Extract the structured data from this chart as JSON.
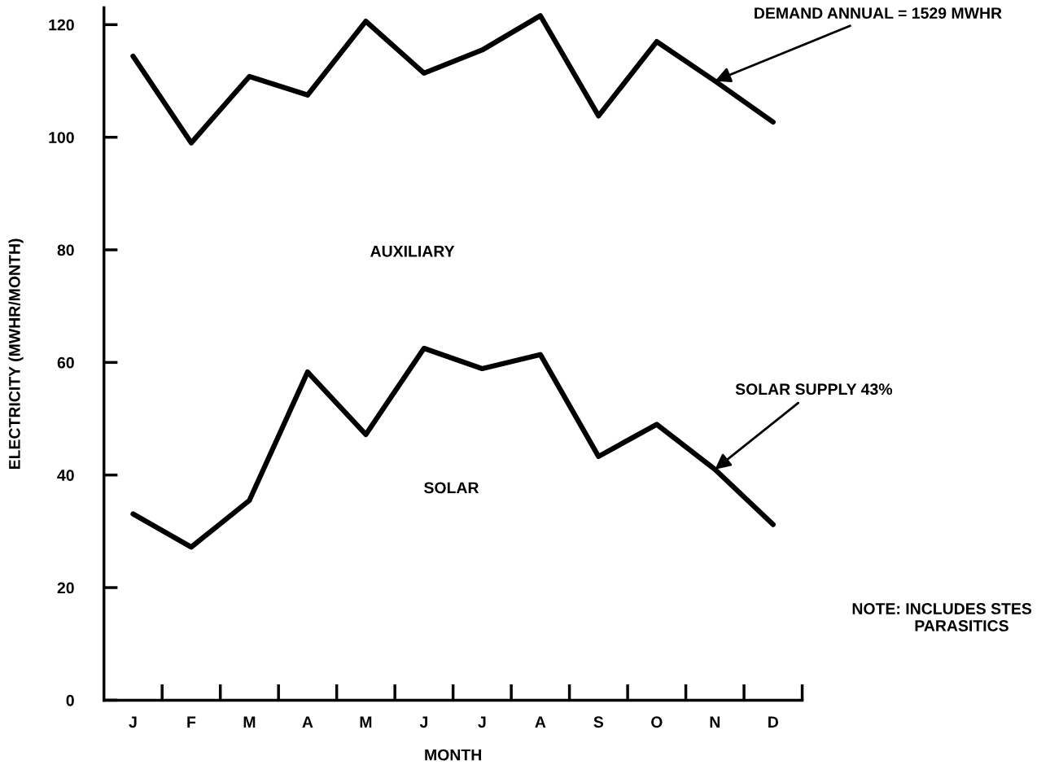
{
  "chart_data": {
    "type": "line",
    "xlabel": "MONTH",
    "ylabel": "ELECTRICITY (MWHR/MONTH)",
    "categories": [
      "J",
      "F",
      "M",
      "A",
      "M",
      "J",
      "J",
      "A",
      "S",
      "O",
      "N",
      "D"
    ],
    "series": [
      {
        "color": "#000000",
        "values": [
          114.4,
          99,
          110.8,
          107.5,
          120.6,
          111.4,
          115.5,
          121.6,
          103.8,
          117,
          110,
          102.7
        ]
      },
      {
        "color": "#000000",
        "values": [
          33.1,
          27.2,
          35.5,
          58.3,
          47.2,
          62.5,
          58.9,
          61.4,
          43.3,
          49,
          41,
          31.2
        ]
      }
    ],
    "ylim": [
      0,
      123
    ],
    "yticks": [
      0,
      20,
      40,
      60,
      80,
      100,
      120
    ],
    "grid": false,
    "legend": false,
    "marker": "none",
    "line_style": "solid",
    "annotations": [
      {
        "text": "DEMAND ANNUAL = 1529 MWHR",
        "x": "N",
        "y": 110
      },
      {
        "text": "SOLAR SUPPLY 43%",
        "x": "N",
        "y": 41
      },
      "AUXILIARY",
      "SOLAR",
      "NOTE: INCLUDES STES\n         PARASITICS"
    ]
  }
}
